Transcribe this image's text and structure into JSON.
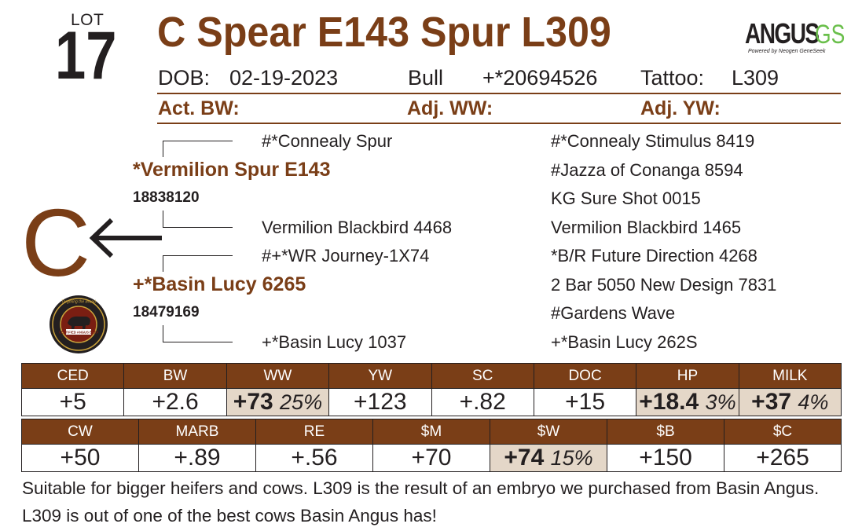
{
  "lot": {
    "label": "LOT",
    "number": "17"
  },
  "title": "C Spear E143 Spur L309",
  "logo": {
    "brand": "ANGUS",
    "suffix": "GS",
    "tagline": "Powered by Neogen GeneSeek"
  },
  "info": {
    "dob_label": "DOB:",
    "dob": "02-19-2023",
    "sex": "Bull",
    "reg": "+*20694526",
    "tattoo_label": "Tattoo:",
    "tattoo": "L309"
  },
  "weights": {
    "bw_label": "Act. BW:",
    "ww_label": "Adj. WW:",
    "yw_label": "Adj. YW:"
  },
  "pedigree": {
    "sire": {
      "name": "*Vermilion Spur E143",
      "reg": "18838120"
    },
    "dam": {
      "name": "+*Basin Lucy 6265",
      "reg": "18479169"
    },
    "grand": [
      "#*Connealy Spur",
      "Vermilion Blackbird 4468",
      "#+*WR Journey-1X74",
      "+*Basin Lucy 1037"
    ],
    "great": [
      "#*Connealy Stimulus 8419",
      "#Jazza of Conanga 8594",
      "KG Sure Shot 0015",
      "Vermilion Blackbird 1465",
      "*B/R Future Direction 4268",
      "2 Bar 5050 New Design 7831",
      "#Gardens Wave",
      "+*Basin Lucy 262S"
    ]
  },
  "brand_mark": "C",
  "cab_logo": {
    "top": "Targeting the Brand",
    "center": "CERTIFIED ANGUS BEEF"
  },
  "colors": {
    "brown": "#7a3e17",
    "highlight": "#e4d7c8",
    "green": "#6abf4b"
  },
  "epd_row1": {
    "headers": [
      "CED",
      "BW",
      "WW",
      "YW",
      "SC",
      "DOC",
      "HP",
      "MILK"
    ],
    "values": [
      "+5",
      "+2.6",
      "+73",
      "+123",
      "+.82",
      "+15",
      "+18.4",
      "+37"
    ],
    "pcts": [
      "",
      "",
      "25%",
      "",
      "",
      "",
      "3%",
      "4%"
    ]
  },
  "epd_row2": {
    "headers": [
      "CW",
      "MARB",
      "RE",
      "$M",
      "$W",
      "$B",
      "$C"
    ],
    "values": [
      "+50",
      "+.89",
      "+.56",
      "+70",
      "+74",
      "+150",
      "+265"
    ],
    "pcts": [
      "",
      "",
      "",
      "",
      "15%",
      "",
      ""
    ]
  },
  "description": "Suitable for bigger heifers and cows. L309 is the result of an embryo we purchased from Basin Angus. L309 is out of one of the best cows Basin Angus has!"
}
